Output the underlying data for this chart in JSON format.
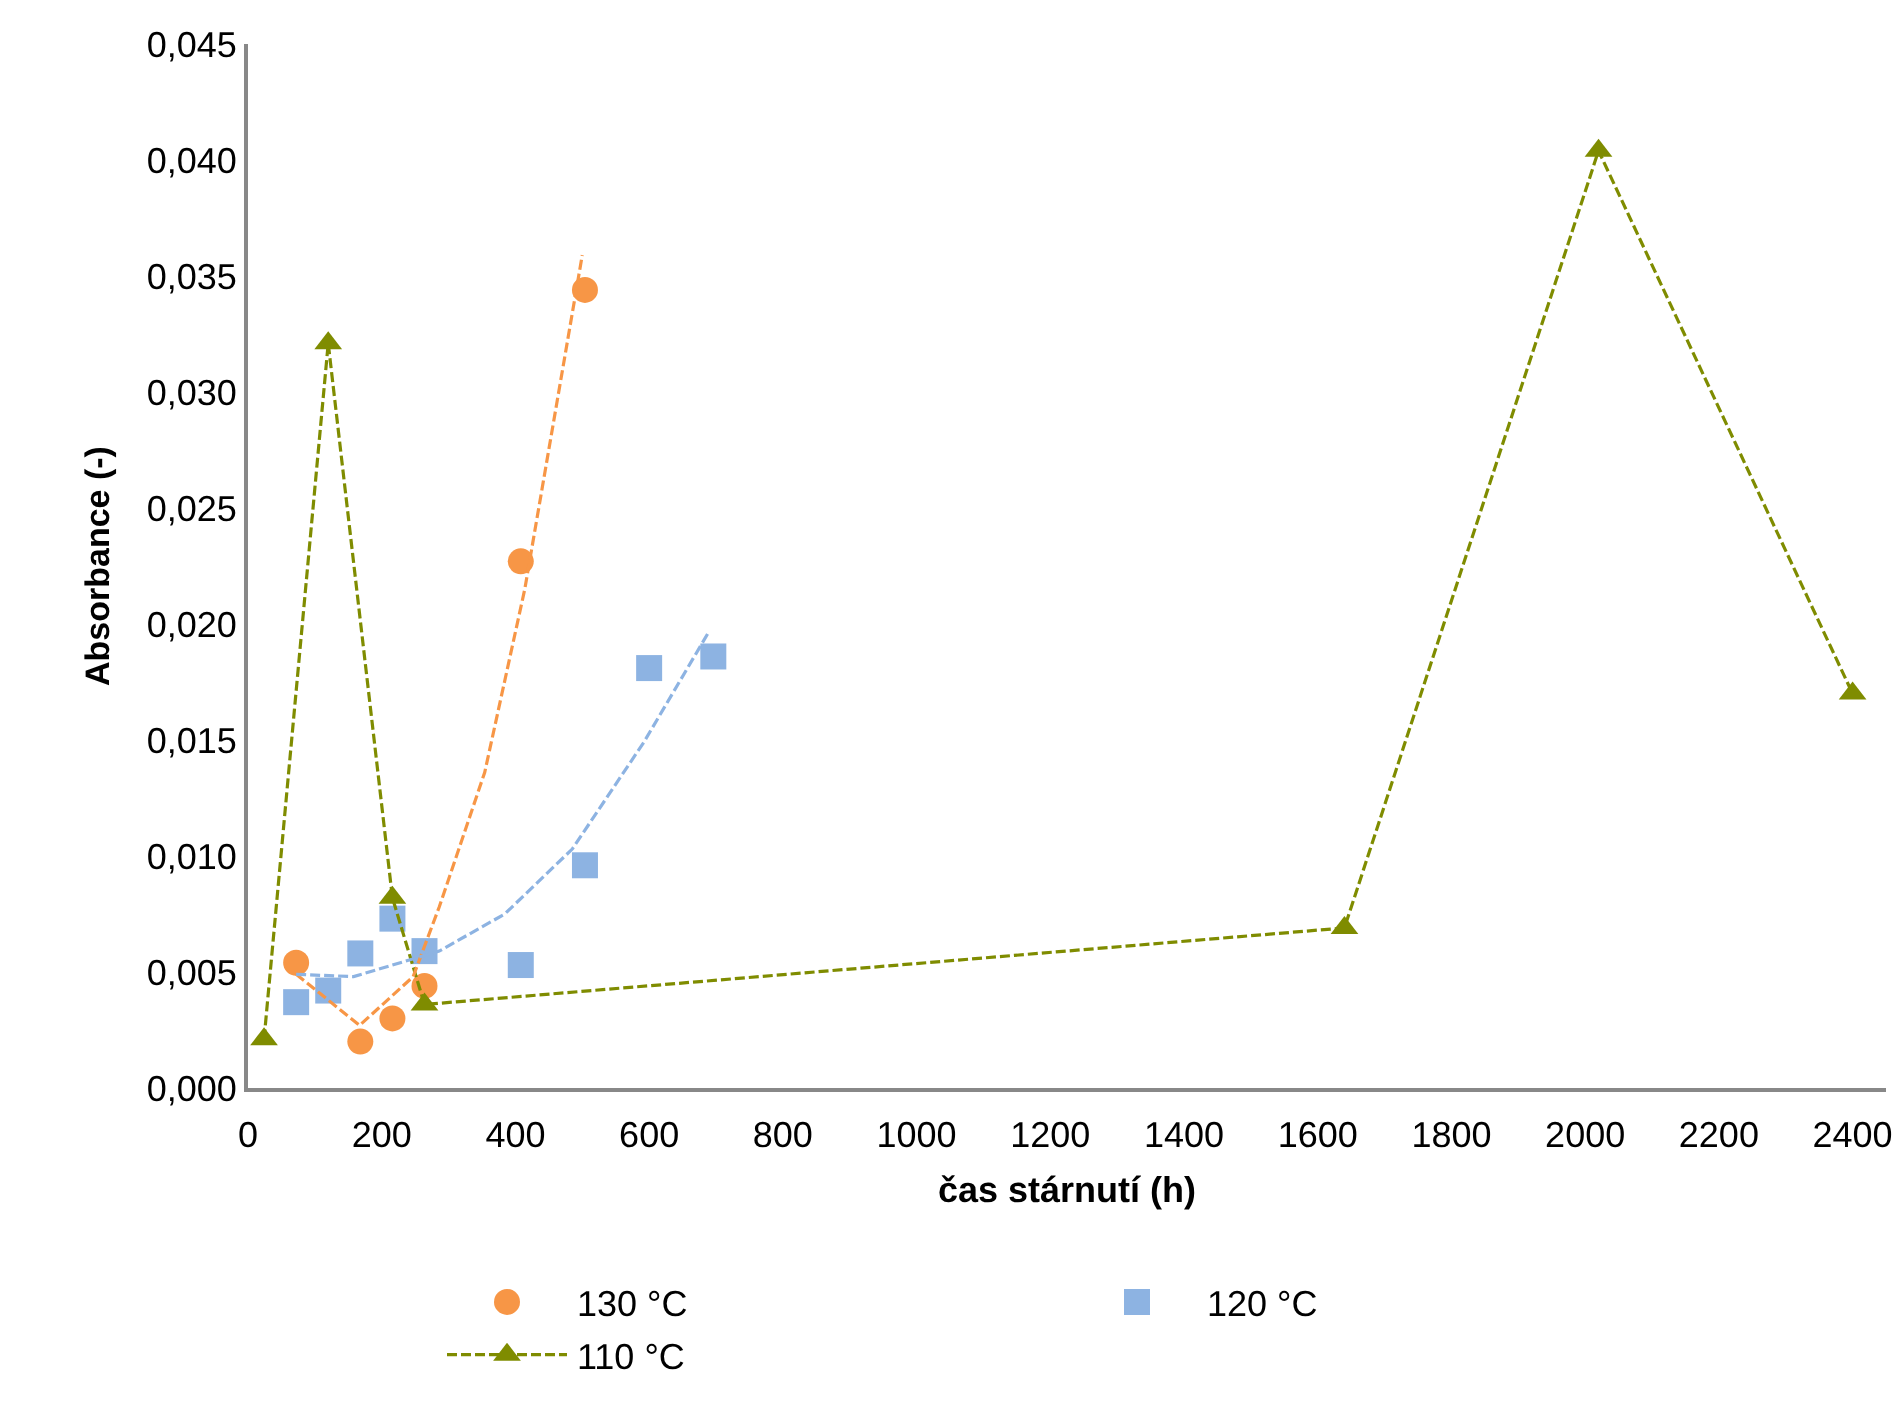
{
  "chart_data": {
    "type": "scatter",
    "xlabel": "čas stárnutí (h)",
    "ylabel": "Absorbance (-)",
    "xlim": [
      0,
      2450
    ],
    "xticks": [
      0,
      200,
      400,
      600,
      800,
      1000,
      1200,
      1400,
      1600,
      1800,
      2000,
      2200,
      2400
    ],
    "ylim": [
      0,
      0.045
    ],
    "yticks": [
      {
        "value": 0,
        "label": "0,000"
      },
      {
        "value": 0.005,
        "label": "0,005"
      },
      {
        "value": 0.01,
        "label": "0,010"
      },
      {
        "value": 0.015,
        "label": "0,015"
      },
      {
        "value": 0.02,
        "label": "0,020"
      },
      {
        "value": 0.025,
        "label": "0,025"
      },
      {
        "value": 0.03,
        "label": "0,030"
      },
      {
        "value": 0.035,
        "label": "0,035"
      },
      {
        "value": 0.04,
        "label": "0,040"
      },
      {
        "value": 0.045,
        "label": "0,045"
      }
    ],
    "grid": false,
    "legend": "bottom",
    "series": [
      {
        "name": "130 °C",
        "marker": "circle",
        "color": "#f79646",
        "x": [
          72,
          168,
          216,
          264,
          408,
          504
        ],
        "values": [
          0.0054,
          0.002,
          0.003,
          0.0044,
          0.0227,
          0.0344
        ]
      },
      {
        "name": "120 °C",
        "marker": "square",
        "color": "#8db3e2",
        "x": [
          72,
          120,
          168,
          216,
          264,
          408,
          504,
          600,
          696
        ],
        "values": [
          0.0037,
          0.0042,
          0.0058,
          0.0073,
          0.0059,
          0.0053,
          0.0096,
          0.0181,
          0.0186
        ]
      },
      {
        "name": "110 °C",
        "type": "line",
        "marker": "triangle",
        "line_style": "dashed",
        "color": "#7f8c00",
        "x": [
          24,
          120,
          216,
          264,
          1640,
          2020,
          2400
        ],
        "values": [
          0.0021,
          0.0321,
          0.0082,
          0.0036,
          0.0069,
          0.0404,
          0.017
        ]
      },
      {
        "type": "line",
        "marker": "none",
        "line_style": "dashed",
        "color": "#f79646",
        "x": [
          72,
          167,
          247,
          286,
          354,
          414,
          500
        ],
        "values": [
          0.0049,
          0.0027,
          0.0048,
          0.0078,
          0.0136,
          0.0215,
          0.0359
        ]
      },
      {
        "type": "line",
        "marker": "none",
        "line_style": "dashed",
        "color": "#8db3e2",
        "x": [
          72,
          158,
          286,
          384,
          485,
          592,
          688
        ],
        "values": [
          0.0049,
          0.0048,
          0.0059,
          0.0075,
          0.0103,
          0.0149,
          0.0196
        ]
      }
    ]
  }
}
